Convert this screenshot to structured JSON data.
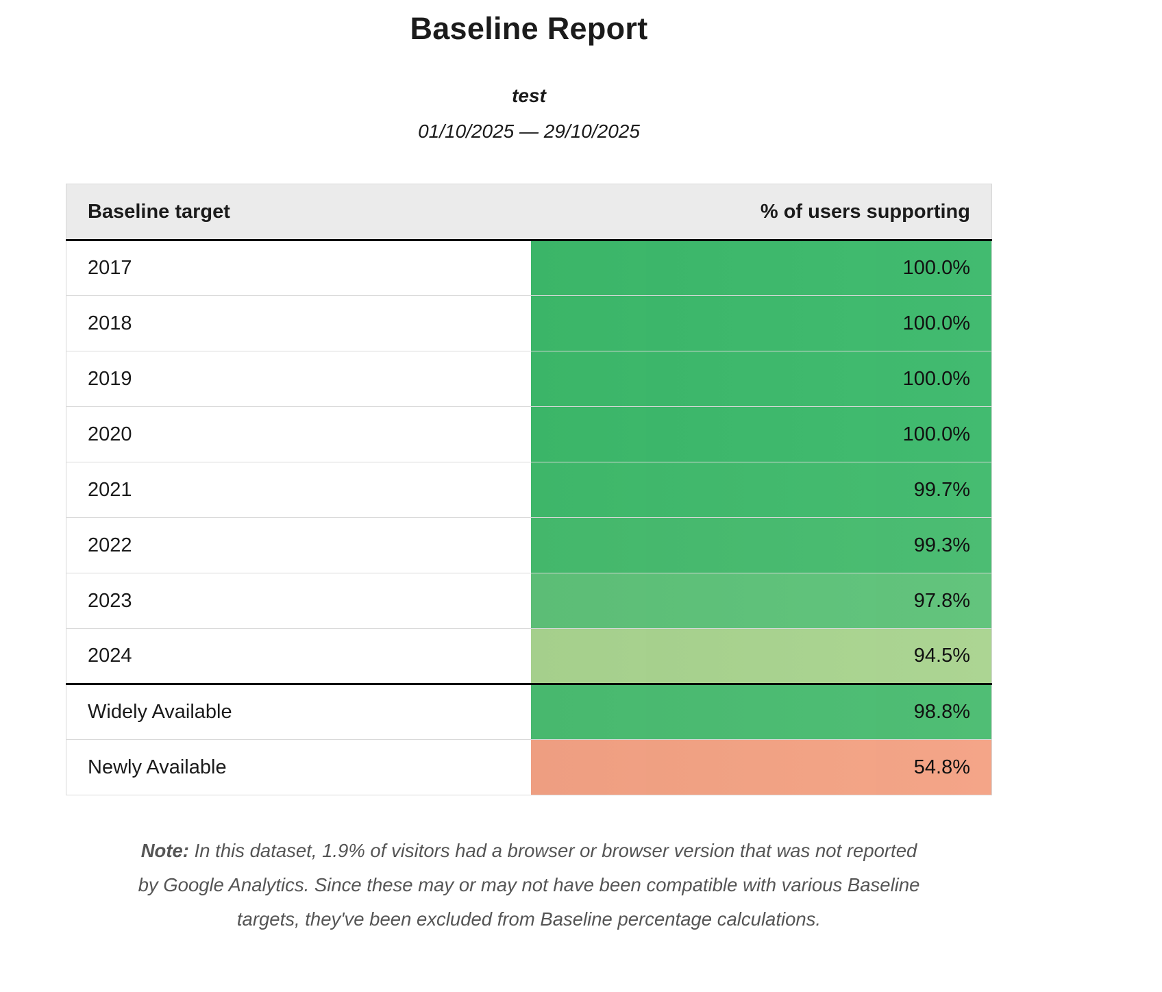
{
  "report": {
    "title": "Baseline Report",
    "subtitle": "test",
    "date_range": "01/10/2025 — 29/10/2025"
  },
  "table": {
    "headers": {
      "target": "Baseline target",
      "percent": "% of users supporting"
    },
    "rows": [
      {
        "target": "2017",
        "percent": "100.0%",
        "color": "#3cb96b"
      },
      {
        "target": "2018",
        "percent": "100.0%",
        "color": "#3cb96b"
      },
      {
        "target": "2019",
        "percent": "100.0%",
        "color": "#3cb96b"
      },
      {
        "target": "2020",
        "percent": "100.0%",
        "color": "#3cb96b"
      },
      {
        "target": "2021",
        "percent": "99.7%",
        "color": "#40ba6c"
      },
      {
        "target": "2022",
        "percent": "99.3%",
        "color": "#46bb6e"
      },
      {
        "target": "2023",
        "percent": "97.8%",
        "color": "#5ec279"
      },
      {
        "target": "2024",
        "percent": "94.5%",
        "color": "#a9d48f"
      },
      {
        "target": "Widely Available",
        "percent": "98.8%",
        "color": "#4abc71"
      },
      {
        "target": "Newly Available",
        "percent": "54.8%",
        "color": "#f4a284"
      }
    ]
  },
  "note": {
    "label": "Note:",
    "text": "In this dataset, 1.9% of visitors had a browser or browser version that was not reported by Google Analytics. Since these may or may not have been compatible with various Baseline targets, they've been excluded from Baseline percentage calculations."
  }
}
